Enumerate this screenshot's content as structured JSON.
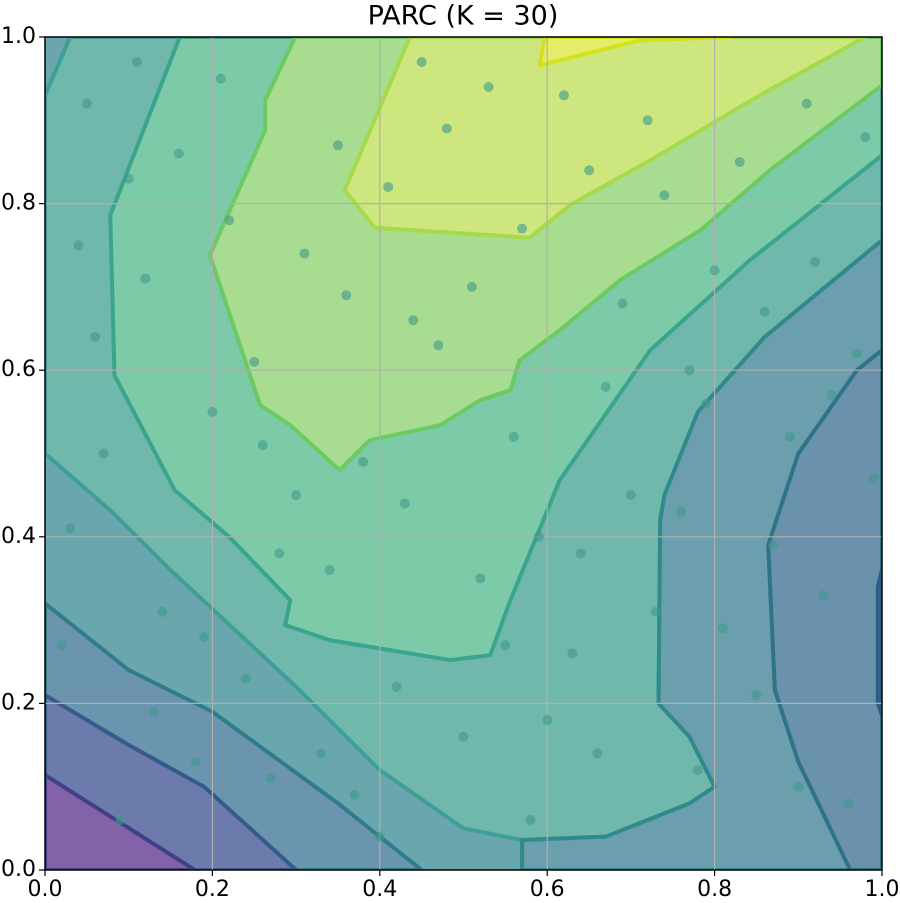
{
  "chart_data": {
    "type": "contour",
    "title": "PARC (K = 30)",
    "xlim": [
      0,
      1
    ],
    "ylim": [
      0,
      1
    ],
    "xticks": [
      {
        "value": 0,
        "label": "0.0"
      },
      0.2,
      0.4,
      0.6,
      0.8,
      {
        "value": 1,
        "label": "1.0"
      }
    ],
    "yticks": [
      {
        "value": 0,
        "label": "0.0"
      },
      0.2,
      0.4,
      0.6,
      0.8,
      {
        "value": 1,
        "label": "1.0"
      }
    ],
    "grid": true,
    "background_color": "#6aa6ad",
    "contours": [
      {
        "fill": "#70b8ab",
        "line": "#3f9f96",
        "x": [
          0.03,
          0,
          0,
          0.08,
          0.15,
          0.3,
          0.4,
          0.5,
          0.57,
          0.67,
          0.77,
          0.8,
          0.77,
          0.733,
          0.735,
          0.78,
          0.86,
          1,
          1
        ],
        "y": [
          1,
          0.93,
          0.5,
          0.43,
          0.36,
          0.22,
          0.12,
          0.05,
          0.036,
          0.04,
          0.08,
          0.1,
          0.16,
          0.2,
          0.42,
          0.55,
          0.64,
          0.756,
          1
        ]
      },
      {
        "fill": "#7ccaa8",
        "line": "#3aa48d",
        "x": [
          0.161,
          0.078,
          0.083,
          0.155,
          0.22,
          0.293,
          0.287,
          0.34,
          0.484,
          0.532,
          0.556,
          0.615,
          0.723,
          0.842,
          1,
          1
        ],
        "y": [
          1,
          0.786,
          0.594,
          0.456,
          0.4,
          0.324,
          0.294,
          0.276,
          0.252,
          0.258,
          0.324,
          0.468,
          0.624,
          0.732,
          0.858,
          1
        ]
      },
      {
        "fill": "#a8dc90",
        "line": "#6cca62",
        "x": [
          0.299,
          0.263,
          0.263,
          0.197,
          0.257,
          0.293,
          0.352,
          0.388,
          0.472,
          0.52,
          0.556,
          0.567,
          0.615,
          0.687,
          0.783,
          0.866,
          1,
          1
        ],
        "y": [
          1,
          0.924,
          0.888,
          0.738,
          0.558,
          0.534,
          0.48,
          0.516,
          0.534,
          0.564,
          0.576,
          0.612,
          0.648,
          0.708,
          0.768,
          0.84,
          0.942,
          1
        ]
      },
      {
        "fill": "#cde77e",
        "line": "#a6da4a",
        "x": [
          0.436,
          0.358,
          0.394,
          0.579,
          0.627,
          0.723,
          0.854,
          0.98
        ],
        "y": [
          1,
          0.816,
          0.771,
          0.759,
          0.798,
          0.852,
          0.93,
          1
        ]
      },
      {
        "fill": "#e6ec6a",
        "line": "#d2e21b",
        "x": [
          0.597,
          0.591,
          0.711,
          0.818
        ],
        "y": [
          1,
          0.966,
          0.996,
          1
        ]
      },
      {
        "fill": "#6b9fae",
        "line": "#2f8a8c",
        "x": [
          1,
          0.86,
          0.78,
          0.74,
          0.735,
          0.733,
          0.77,
          0.8,
          0.77,
          0.67,
          0.57,
          0.57,
          1
        ],
        "y": [
          0.756,
          0.64,
          0.55,
          0.45,
          0.42,
          0.2,
          0.16,
          0.1,
          0.08,
          0.04,
          0.036,
          0,
          0
        ]
      },
      {
        "fill": "#6a92ad",
        "line": "#2e7388",
        "x": [
          1,
          0.97,
          0.9,
          0.864,
          0.872,
          0.9,
          0.962,
          1
        ],
        "y": [
          0.624,
          0.6,
          0.5,
          0.39,
          0.216,
          0.13,
          0,
          0
        ]
      },
      {
        "fill": "#6d7fab",
        "line": "#2c5d87",
        "x": [
          1,
          0.995,
          0.995,
          1
        ],
        "y": [
          0.36,
          0.34,
          0.2,
          0.186
        ]
      },
      {
        "fill": "#6b95ae",
        "line": "#2f7d8c",
        "x": [
          0,
          0.1,
          0.2,
          0.35,
          0.45,
          0
        ],
        "y": [
          0.32,
          0.24,
          0.19,
          0.08,
          0,
          0
        ]
      },
      {
        "fill": "#6c7bab",
        "line": "#345b8a",
        "x": [
          0,
          0.1,
          0.19,
          0.3,
          0
        ],
        "y": [
          0.21,
          0.15,
          0.1,
          0,
          0
        ]
      },
      {
        "fill": "#8263a7",
        "line": "#413f87",
        "x": [
          0,
          0.179,
          0
        ],
        "y": [
          0.114,
          0,
          0
        ]
      }
    ],
    "scatter": {
      "color": "#3f9a8a",
      "x": [
        0.05,
        0.12,
        0.2,
        0.28,
        0.33,
        0.41,
        0.47,
        0.55,
        0.62,
        0.7,
        0.78,
        0.86,
        0.93,
        0.98,
        0.03,
        0.09,
        0.16,
        0.24,
        0.31,
        0.38,
        0.45,
        0.52,
        0.6,
        0.67,
        0.74,
        0.81,
        0.89,
        0.96,
        0.06,
        0.14,
        0.21,
        0.27,
        0.36,
        0.43,
        0.5,
        0.57,
        0.64,
        0.72,
        0.79,
        0.85,
        0.92,
        0.99,
        0.02,
        0.1,
        0.18,
        0.25,
        0.34,
        0.4,
        0.48,
        0.56,
        0.63,
        0.69,
        0.76,
        0.83,
        0.9,
        0.97,
        0.07,
        0.13,
        0.22,
        0.3,
        0.37,
        0.44,
        0.53,
        0.59,
        0.66,
        0.73,
        0.8,
        0.87,
        0.94,
        0.04,
        0.11,
        0.19,
        0.26,
        0.35,
        0.42,
        0.51,
        0.58,
        0.65,
        0.77,
        0.91
      ],
      "y": [
        0.92,
        0.71,
        0.55,
        0.38,
        0.14,
        0.82,
        0.63,
        0.27,
        0.93,
        0.45,
        0.12,
        0.67,
        0.33,
        0.88,
        0.41,
        0.06,
        0.86,
        0.23,
        0.74,
        0.49,
        0.97,
        0.35,
        0.18,
        0.58,
        0.81,
        0.29,
        0.52,
        0.08,
        0.64,
        0.31,
        0.95,
        0.11,
        0.69,
        0.44,
        0.16,
        0.77,
        0.38,
        0.9,
        0.56,
        0.21,
        0.73,
        0.47,
        0.27,
        0.83,
        0.13,
        0.61,
        0.36,
        0.04,
        0.89,
        0.52,
        0.26,
        0.68,
        0.43,
        0.85,
        0.1,
        0.62,
        0.5,
        0.19,
        0.78,
        0.45,
        0.09,
        0.66,
        0.94,
        0.4,
        0.14,
        0.31,
        0.72,
        0.39,
        0.57,
        0.75,
        0.97,
        0.28,
        0.51,
        0.87,
        0.22,
        0.7,
        0.06,
        0.84,
        0.6,
        0.92
      ]
    }
  }
}
